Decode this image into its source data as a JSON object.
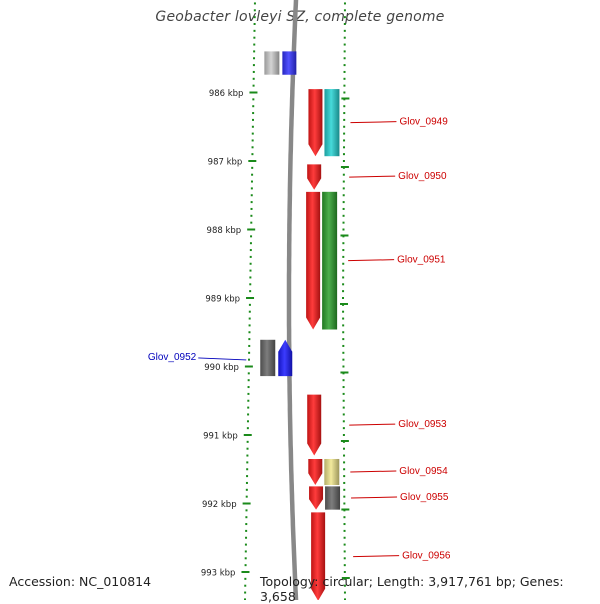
{
  "title": "Geobacter lovleyi SZ, complete genome",
  "footer": {
    "accession": "Accession: NC_010814",
    "summary": "Topology: circular; Length: 3,917,761 bp; Genes: 3,658"
  },
  "ruler": {
    "unit": "kbp",
    "ticks": [
      {
        "kbp": 986,
        "label": "986 kbp"
      },
      {
        "kbp": 987,
        "label": "987 kbp"
      },
      {
        "kbp": 988,
        "label": "988 kbp"
      },
      {
        "kbp": 989,
        "label": "989 kbp"
      },
      {
        "kbp": 990,
        "label": "990 kbp"
      },
      {
        "kbp": 991,
        "label": "991 kbp"
      },
      {
        "kbp": 992,
        "label": "992 kbp"
      },
      {
        "kbp": 993,
        "label": "993 kbp"
      }
    ]
  },
  "colors": {
    "backbone": "#888888",
    "tick": "#1a8a1a",
    "label_plus": "#cc0000",
    "label_minus": "#0000bb"
  },
  "genes": [
    {
      "name": "",
      "strand": "-",
      "start": 985.4,
      "end": 985.74,
      "cds_color": "#3333ff",
      "feature_color": "#cccccc",
      "arrow": false
    },
    {
      "name": "Glov_0949",
      "strand": "+",
      "start": 985.95,
      "end": 986.93,
      "cds_color": "#ff1a1a",
      "feature_color": "#27d3d3",
      "arrow": true
    },
    {
      "name": "Glov_0950",
      "strand": "+",
      "start": 987.05,
      "end": 987.42,
      "cds_color": "#ff1a1a",
      "feature_color": null,
      "arrow": true
    },
    {
      "name": "Glov_0951",
      "strand": "+",
      "start": 987.45,
      "end": 989.46,
      "cds_color": "#ff1a1a",
      "feature_color": "#2ca02c",
      "arrow": true
    },
    {
      "name": "Glov_0952",
      "strand": "-",
      "start": 989.61,
      "end": 990.14,
      "cds_color": "#1a1aff",
      "feature_color": "#666666",
      "arrow": true
    },
    {
      "name": "Glov_0953",
      "strand": "+",
      "start": 990.41,
      "end": 991.3,
      "cds_color": "#ff1a1a",
      "feature_color": null,
      "arrow": true
    },
    {
      "name": "Glov_0954",
      "strand": "+",
      "start": 991.35,
      "end": 991.73,
      "cds_color": "#ff1a1a",
      "feature_color": "#f0e68c",
      "arrow": true
    },
    {
      "name": "Glov_0955",
      "strand": "+",
      "start": 991.75,
      "end": 992.09,
      "cds_color": "#ff1a1a",
      "feature_color": "#666666",
      "arrow": true
    },
    {
      "name": "Glov_0956",
      "strand": "+",
      "start": 992.13,
      "end": 993.42,
      "cds_color": "#ff1a1a",
      "feature_color": null,
      "arrow": true
    }
  ]
}
